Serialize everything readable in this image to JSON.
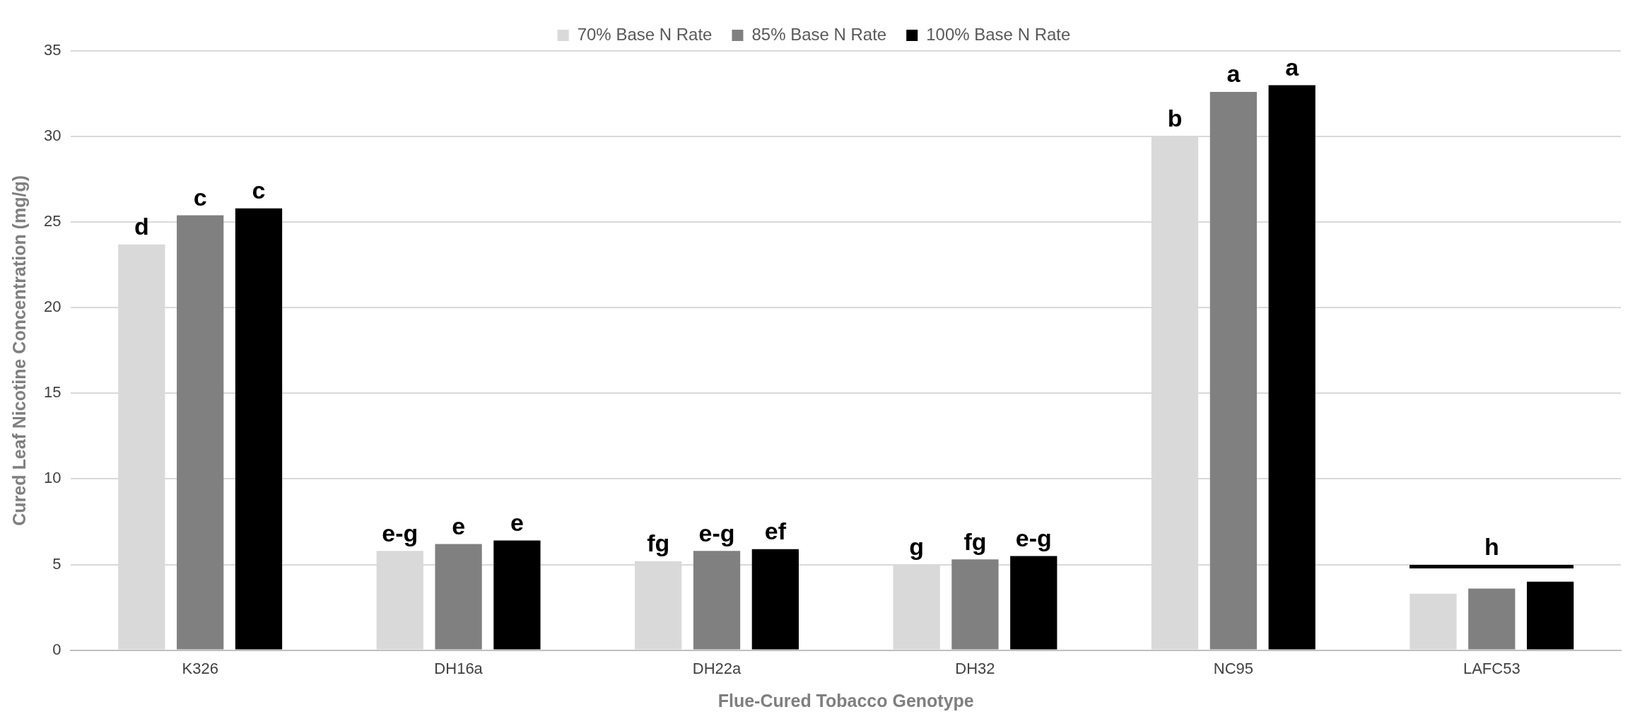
{
  "chart_data": {
    "type": "bar",
    "xlabel": "Flue-Cured Tobacco Genotype",
    "ylabel": "Cured Leaf Nicotine Concentration (mg/g)",
    "categories": [
      "K326",
      "DH16a",
      "DH22a",
      "DH32",
      "NC95",
      "LAFC53"
    ],
    "series": [
      {
        "name": "70% Base N Rate",
        "color": "#d9d9d9",
        "values": [
          23.7,
          5.8,
          5.2,
          5.0,
          30.0,
          3.3
        ],
        "value_labels": [
          "d",
          "e-g",
          "fg",
          "g",
          "b",
          null
        ]
      },
      {
        "name": "85% Base N Rate",
        "color": "#808080",
        "values": [
          25.4,
          6.2,
          5.8,
          5.3,
          32.6,
          3.6
        ],
        "value_labels": [
          "c",
          "e",
          "e-g",
          "fg",
          "a",
          null
        ]
      },
      {
        "name": "100% Base N Rate",
        "color": "#000000",
        "values": [
          25.8,
          6.4,
          5.9,
          5.5,
          33.0,
          4.0
        ],
        "value_labels": [
          "c",
          "e",
          "ef",
          "e-g",
          "a",
          null
        ]
      }
    ],
    "ylim": [
      0,
      35
    ],
    "yticks": [
      0,
      5,
      10,
      15,
      20,
      25,
      30,
      35
    ],
    "grid": "y",
    "legend": "top",
    "annotations": [
      "h"
    ]
  }
}
